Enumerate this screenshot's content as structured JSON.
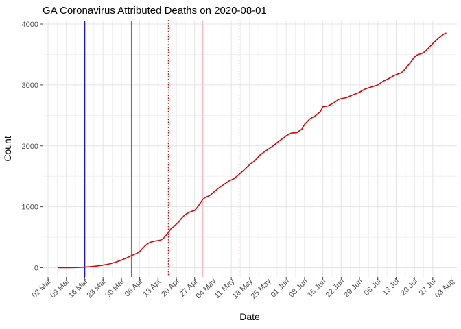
{
  "chart_data": {
    "type": "line",
    "title": "GA Coronavirus Attributed Deaths on 2020-08-01",
    "xlabel": "Date",
    "ylabel": "Count",
    "ylim": [
      0,
      4000
    ],
    "yticks": [
      0,
      1000,
      2000,
      3000,
      4000
    ],
    "x_tick_labels": [
      "02 Mar",
      "09 Mar",
      "16 Mar",
      "23 Mar",
      "30 Mar",
      "06 Apr",
      "13 Apr",
      "20 Apr",
      "27 Apr",
      "04 May",
      "11 May",
      "18 May",
      "25 May",
      "01 Jun",
      "08 Jun",
      "15 Jun",
      "22 Jun",
      "29 Jun",
      "06 Jul",
      "13 Jul",
      "20 Jul",
      "27 Jul",
      "03 Aug"
    ],
    "grid": "major-and-minor, light gray on white",
    "legend": "none",
    "line_color": "#dd0000",
    "vlines": [
      {
        "name": "vline-blue-solid",
        "date": "3-16",
        "color": "#1414c8",
        "style": "solid"
      },
      {
        "name": "vline-red-solid",
        "date": "4-3",
        "color": "#dd0000",
        "style": "solid"
      },
      {
        "name": "vline-red-dotted",
        "date": "4-17",
        "color": "#dd0000",
        "style": "dotted"
      },
      {
        "name": "vline-pink-solid",
        "date": "4-30",
        "color": "#ffb3be",
        "style": "solid"
      },
      {
        "name": "vline-pink-dotted",
        "date": "5-14",
        "color": "#ffb3be",
        "style": "dotted"
      }
    ],
    "series": [
      {
        "name": "cumulative-deaths",
        "points": [
          [
            "3-6",
            0
          ],
          [
            "3-10",
            1
          ],
          [
            "3-12",
            2
          ],
          [
            "3-14",
            4
          ],
          [
            "3-16",
            10
          ],
          [
            "3-18",
            16
          ],
          [
            "3-20",
            25
          ],
          [
            "3-22",
            36
          ],
          [
            "3-24",
            50
          ],
          [
            "3-26",
            67
          ],
          [
            "3-28",
            92
          ],
          [
            "3-30",
            124
          ],
          [
            "4-1",
            160
          ],
          [
            "4-3",
            200
          ],
          [
            "4-5",
            236
          ],
          [
            "4-6",
            262
          ],
          [
            "4-7",
            310
          ],
          [
            "4-8",
            355
          ],
          [
            "4-9",
            390
          ],
          [
            "4-10",
            416
          ],
          [
            "4-11",
            428
          ],
          [
            "4-12",
            438
          ],
          [
            "4-13",
            445
          ],
          [
            "4-14",
            452
          ],
          [
            "4-15",
            478
          ],
          [
            "4-16",
            524
          ],
          [
            "4-17",
            576
          ],
          [
            "4-18",
            640
          ],
          [
            "4-19",
            673
          ],
          [
            "4-20",
            715
          ],
          [
            "4-21",
            755
          ],
          [
            "4-22",
            810
          ],
          [
            "4-23",
            855
          ],
          [
            "4-24",
            885
          ],
          [
            "4-25",
            908
          ],
          [
            "4-26",
            925
          ],
          [
            "4-27",
            940
          ],
          [
            "4-28",
            988
          ],
          [
            "4-29",
            1050
          ],
          [
            "4-30",
            1115
          ],
          [
            "5-1",
            1150
          ],
          [
            "5-2",
            1170
          ],
          [
            "5-3",
            1190
          ],
          [
            "5-4",
            1230
          ],
          [
            "5-6",
            1300
          ],
          [
            "5-8",
            1360
          ],
          [
            "5-10",
            1420
          ],
          [
            "5-12",
            1462
          ],
          [
            "5-14",
            1530
          ],
          [
            "5-16",
            1610
          ],
          [
            "5-18",
            1690
          ],
          [
            "5-20",
            1755
          ],
          [
            "5-22",
            1850
          ],
          [
            "5-24",
            1910
          ],
          [
            "5-25",
            1940
          ],
          [
            "5-27",
            2000
          ],
          [
            "5-29",
            2070
          ],
          [
            "5-31",
            2130
          ],
          [
            "6-1",
            2165
          ],
          [
            "6-3",
            2210
          ],
          [
            "6-5",
            2215
          ],
          [
            "6-7",
            2275
          ],
          [
            "6-8",
            2350
          ],
          [
            "6-10",
            2440
          ],
          [
            "6-12",
            2490
          ],
          [
            "6-14",
            2560
          ],
          [
            "6-15",
            2640
          ],
          [
            "6-17",
            2655
          ],
          [
            "6-19",
            2700
          ],
          [
            "6-21",
            2760
          ],
          [
            "6-22",
            2775
          ],
          [
            "6-24",
            2790
          ],
          [
            "6-26",
            2830
          ],
          [
            "6-28",
            2860
          ],
          [
            "6-29",
            2880
          ],
          [
            "7-1",
            2930
          ],
          [
            "7-3",
            2960
          ],
          [
            "7-5",
            2985
          ],
          [
            "7-6",
            3000
          ],
          [
            "7-8",
            3060
          ],
          [
            "7-10",
            3100
          ],
          [
            "7-12",
            3150
          ],
          [
            "7-13",
            3170
          ],
          [
            "7-15",
            3200
          ],
          [
            "7-16",
            3240
          ],
          [
            "7-17",
            3290
          ],
          [
            "7-18",
            3345
          ],
          [
            "7-19",
            3400
          ],
          [
            "7-20",
            3460
          ],
          [
            "7-21",
            3490
          ],
          [
            "7-22",
            3505
          ],
          [
            "7-23",
            3520
          ],
          [
            "7-24",
            3545
          ],
          [
            "7-25",
            3590
          ],
          [
            "7-26",
            3635
          ],
          [
            "7-27",
            3680
          ],
          [
            "7-28",
            3720
          ],
          [
            "7-29",
            3760
          ],
          [
            "7-30",
            3795
          ],
          [
            "7-31",
            3830
          ],
          [
            "8-1",
            3850
          ]
        ]
      }
    ],
    "colors": {
      "grid_major": "#e4e4e4",
      "grid_minor": "#f1f1f1",
      "axis_text": "#4d4d4d",
      "title_text": "#000000",
      "background": "#ffffff"
    }
  }
}
